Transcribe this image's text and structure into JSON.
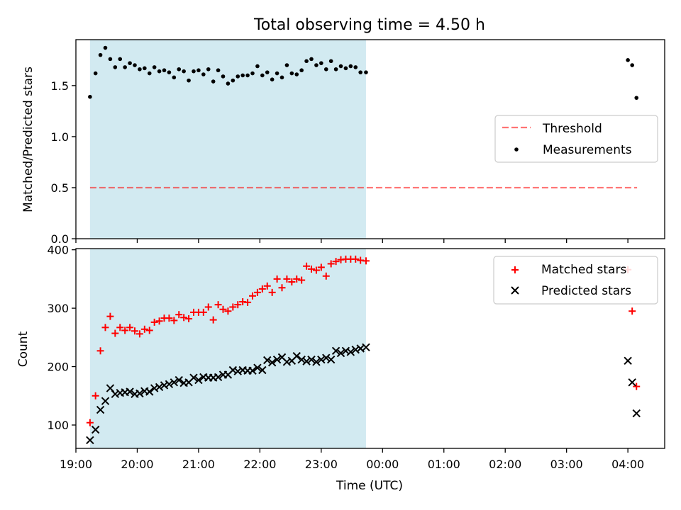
{
  "title": "Total observing time = 4.50 h",
  "colors": {
    "shade": "#add8e6",
    "threshold": "#ff0000",
    "matched": "#ff0000",
    "predicted": "#000000",
    "measurements": "#000000"
  },
  "chart_data": [
    {
      "type": "scatter",
      "ylabel": "Matched/Predicted stars",
      "xlim": [
        19.0,
        28.6
      ],
      "ylim": [
        0.0,
        1.95
      ],
      "yticks": [
        "0.0",
        "0.5",
        "1.0",
        "1.5"
      ],
      "shaded_interval": [
        19.23,
        23.73
      ],
      "legend": {
        "placement": "center-right",
        "entries": [
          "Threshold",
          "Measurements"
        ]
      },
      "threshold": {
        "name": "Threshold",
        "value": 0.5,
        "x": [
          19.23,
          28.15
        ]
      },
      "series": [
        {
          "name": "Measurements",
          "x": [
            19.23,
            19.32,
            19.4,
            19.48,
            19.56,
            19.64,
            19.72,
            19.8,
            19.88,
            19.96,
            20.04,
            20.12,
            20.2,
            20.28,
            20.36,
            20.44,
            20.52,
            20.6,
            20.68,
            20.76,
            20.84,
            20.92,
            21.0,
            21.08,
            21.16,
            21.24,
            21.32,
            21.4,
            21.48,
            21.56,
            21.64,
            21.72,
            21.8,
            21.88,
            21.96,
            22.04,
            22.12,
            22.2,
            22.28,
            22.36,
            22.44,
            22.52,
            22.6,
            22.68,
            22.76,
            22.84,
            22.92,
            23.0,
            23.08,
            23.16,
            23.24,
            23.32,
            23.4,
            23.48,
            23.56,
            23.64,
            23.73,
            28.0,
            28.07,
            28.14
          ],
          "y": [
            1.39,
            1.62,
            1.8,
            1.87,
            1.76,
            1.68,
            1.76,
            1.68,
            1.72,
            1.7,
            1.66,
            1.67,
            1.62,
            1.68,
            1.64,
            1.65,
            1.63,
            1.58,
            1.66,
            1.64,
            1.55,
            1.64,
            1.65,
            1.61,
            1.66,
            1.54,
            1.65,
            1.59,
            1.52,
            1.55,
            1.59,
            1.6,
            1.6,
            1.62,
            1.69,
            1.6,
            1.63,
            1.56,
            1.62,
            1.58,
            1.7,
            1.62,
            1.61,
            1.65,
            1.74,
            1.76,
            1.7,
            1.72,
            1.66,
            1.74,
            1.66,
            1.69,
            1.67,
            1.69,
            1.68,
            1.63,
            1.63,
            1.75,
            1.7,
            1.38
          ]
        }
      ]
    },
    {
      "type": "scatter",
      "xlabel": "Time (UTC)",
      "ylabel": "Count",
      "xlim": [
        19.0,
        28.6
      ],
      "ylim": [
        60,
        402
      ],
      "yticks": [
        "100",
        "200",
        "300",
        "400"
      ],
      "xticks": [
        "19:00",
        "20:00",
        "21:00",
        "22:00",
        "23:00",
        "00:00",
        "01:00",
        "02:00",
        "03:00",
        "04:00"
      ],
      "xtick_values": [
        19,
        20,
        21,
        22,
        23,
        24,
        25,
        26,
        27,
        28
      ],
      "shaded_interval": [
        19.23,
        23.73
      ],
      "legend": {
        "placement": "top-right",
        "entries": [
          "Matched stars",
          "Predicted stars"
        ]
      },
      "series": [
        {
          "name": "Matched stars",
          "marker": "plus",
          "x": [
            19.23,
            19.32,
            19.4,
            19.48,
            19.56,
            19.64,
            19.72,
            19.8,
            19.88,
            19.96,
            20.04,
            20.12,
            20.2,
            20.28,
            20.36,
            20.44,
            20.52,
            20.6,
            20.68,
            20.76,
            20.84,
            20.92,
            21.0,
            21.08,
            21.16,
            21.24,
            21.32,
            21.4,
            21.48,
            21.56,
            21.64,
            21.72,
            21.8,
            21.88,
            21.96,
            22.04,
            22.12,
            22.2,
            22.28,
            22.36,
            22.44,
            22.52,
            22.6,
            22.68,
            22.76,
            22.84,
            22.92,
            23.0,
            23.08,
            23.16,
            23.24,
            23.32,
            23.4,
            23.48,
            23.56,
            23.64,
            23.73,
            28.0,
            28.07,
            28.14
          ],
          "y": [
            104,
            150,
            227,
            267,
            286,
            257,
            267,
            262,
            267,
            261,
            256,
            264,
            262,
            276,
            278,
            283,
            283,
            279,
            289,
            284,
            282,
            293,
            293,
            293,
            302,
            280,
            306,
            298,
            295,
            302,
            306,
            311,
            310,
            321,
            327,
            333,
            338,
            327,
            350,
            335,
            350,
            345,
            350,
            348,
            372,
            367,
            365,
            370,
            355,
            376,
            380,
            383,
            384,
            384,
            384,
            382,
            381,
            366,
            295,
            166
          ]
        },
        {
          "name": "Predicted stars",
          "marker": "x",
          "x": [
            19.23,
            19.32,
            19.4,
            19.48,
            19.56,
            19.64,
            19.72,
            19.8,
            19.88,
            19.96,
            20.04,
            20.12,
            20.2,
            20.28,
            20.36,
            20.44,
            20.52,
            20.6,
            20.68,
            20.76,
            20.84,
            20.92,
            21.0,
            21.08,
            21.16,
            21.24,
            21.32,
            21.4,
            21.48,
            21.56,
            21.64,
            21.72,
            21.8,
            21.88,
            21.96,
            22.04,
            22.12,
            22.2,
            22.28,
            22.36,
            22.44,
            22.52,
            22.6,
            22.68,
            22.76,
            22.84,
            22.92,
            23.0,
            23.08,
            23.16,
            23.24,
            23.32,
            23.4,
            23.48,
            23.56,
            23.64,
            23.73,
            28.0,
            28.07,
            28.14
          ],
          "y": [
            74,
            92,
            126,
            141,
            163,
            153,
            155,
            156,
            157,
            153,
            154,
            158,
            157,
            163,
            165,
            168,
            170,
            173,
            177,
            172,
            173,
            181,
            177,
            182,
            181,
            181,
            182,
            186,
            186,
            194,
            192,
            194,
            193,
            193,
            198,
            194,
            211,
            207,
            212,
            216,
            208,
            210,
            218,
            212,
            209,
            212,
            208,
            212,
            215,
            212,
            227,
            223,
            227,
            225,
            229,
            231,
            233,
            210,
            173,
            120
          ]
        }
      ]
    }
  ]
}
